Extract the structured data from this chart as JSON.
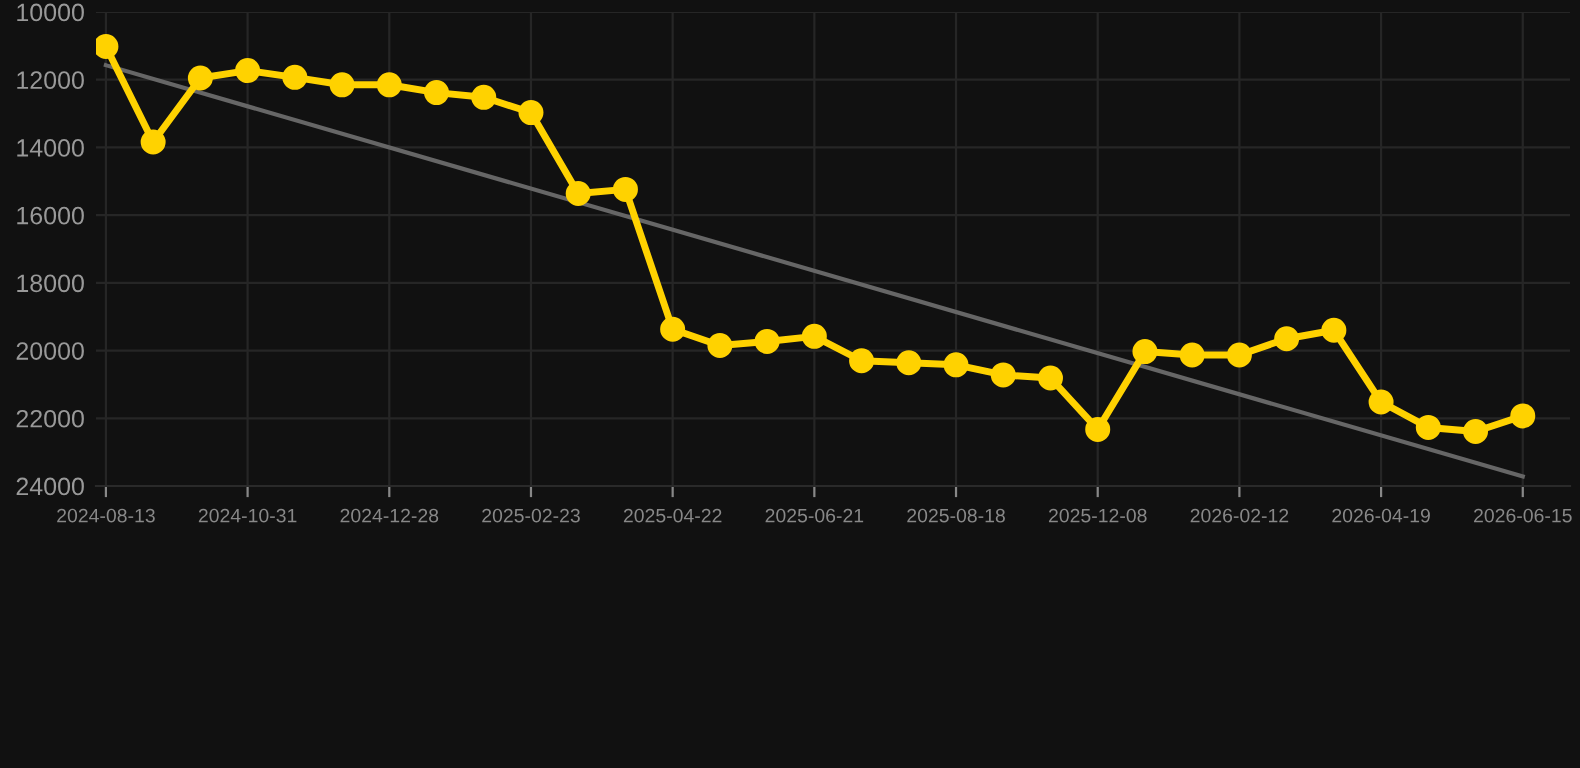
{
  "chart_data": {
    "type": "line",
    "categories": [
      "2024-08-13",
      null,
      null,
      "2024-10-31",
      null,
      null,
      "2024-12-28",
      null,
      null,
      "2025-02-23",
      null,
      null,
      "2025-04-22",
      null,
      null,
      "2025-06-21",
      null,
      null,
      "2025-08-18",
      null,
      null,
      "2025-12-08",
      null,
      null,
      "2026-02-12",
      null,
      null,
      "2026-04-19",
      null,
      null,
      "2026-06-15"
    ],
    "series": [
      {
        "color": "#666666",
        "marker": "none",
        "values": [
          11570,
          null,
          null,
          null,
          null,
          null,
          null,
          null,
          null,
          null,
          null,
          null,
          null,
          null,
          null,
          null,
          null,
          null,
          null,
          null,
          null,
          null,
          null,
          null,
          null,
          null,
          null,
          null,
          null,
          null,
          23720
        ]
      },
      {
        "color": "#ffd200",
        "marker": "circle",
        "values": [
          11020,
          13840,
          11950,
          11730,
          11930,
          12150,
          12150,
          12380,
          12520,
          12970,
          15360,
          15240,
          19370,
          19850,
          19730,
          19580,
          20300,
          20360,
          20420,
          20720,
          20810,
          22330,
          20030,
          20130,
          20130,
          19650,
          19400,
          21520,
          22270,
          22390,
          21930
        ]
      }
    ],
    "ylim": [
      24000,
      10000
    ],
    "yticks": [
      10000,
      12000,
      14000,
      16000,
      18000,
      20000,
      22000,
      24000
    ],
    "grid": true
  }
}
